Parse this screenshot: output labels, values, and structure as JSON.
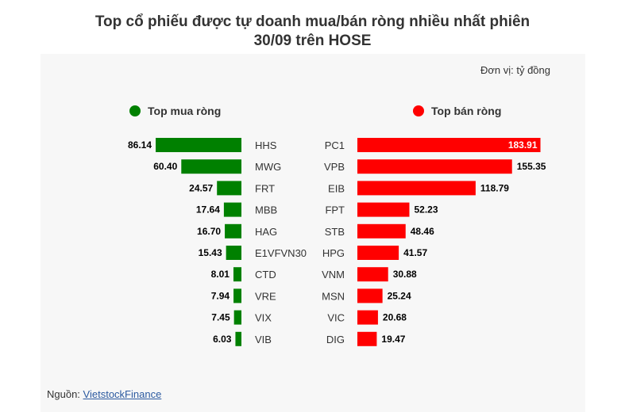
{
  "title_line1": "Top cổ phiếu được tự doanh mua/bán ròng nhiều nhất phiên",
  "title_line2": "30/09 trên HOSE",
  "unit": "Đơn vị: tỷ đồng",
  "legend_buy": "Top mua ròng",
  "legend_sell": "Top bán ròng",
  "source_prefix": "Nguồn: ",
  "source_link": "VietstockFinance",
  "colors": {
    "buy": "#008000",
    "sell": "#ff0000"
  },
  "chart_data": [
    {
      "type": "bar",
      "orientation": "horizontal",
      "series": [
        {
          "name": "Top mua ròng",
          "values": [
            86.14,
            60.4,
            24.57,
            17.64,
            16.7,
            15.43,
            8.01,
            7.94,
            7.45,
            6.03
          ]
        }
      ],
      "categories": [
        "HHS",
        "MWG",
        "FRT",
        "MBB",
        "HAG",
        "E1VFVN30",
        "CTD",
        "VRE",
        "VIX",
        "VIB"
      ],
      "value_labels": [
        "86.14",
        "60.40",
        "24.57",
        "17.64",
        "16.70",
        "15.43",
        "8.01",
        "7.94",
        "7.45",
        "6.03"
      ]
    },
    {
      "type": "bar",
      "orientation": "horizontal",
      "series": [
        {
          "name": "Top bán ròng",
          "values": [
            183.91,
            155.35,
            118.79,
            52.23,
            48.46,
            41.57,
            30.88,
            25.24,
            20.68,
            19.47
          ]
        }
      ],
      "categories": [
        "PC1",
        "VPB",
        "EIB",
        "FPT",
        "STB",
        "HPG",
        "VNM",
        "MSN",
        "VIC",
        "DIG"
      ],
      "value_labels": [
        "183.91",
        "155.35",
        "118.79",
        "52.23",
        "48.46",
        "41.57",
        "30.88",
        "25.24",
        "20.68",
        "19.47"
      ]
    }
  ]
}
